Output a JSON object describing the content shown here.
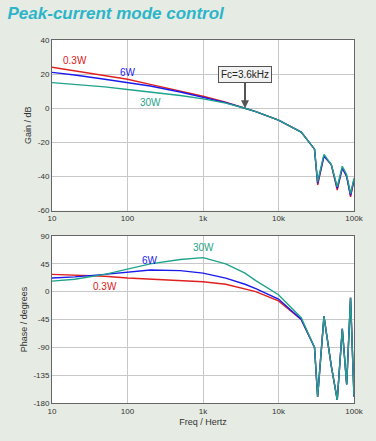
{
  "header": {
    "title": "Peak-current mode control"
  },
  "chart_data": [
    {
      "type": "line",
      "ylabel": "Gain / dB",
      "log": "x",
      "grid": true,
      "x": [
        10,
        20,
        50,
        100,
        200,
        500,
        1000,
        2000,
        3600,
        5000,
        10000,
        20000,
        30000,
        33000,
        40000,
        50000,
        60000,
        70000,
        80000,
        90000,
        100000
      ],
      "xlim": [
        10,
        100000
      ],
      "xticks": [
        10,
        100,
        {
          "value": 1000,
          "label": "1k"
        },
        {
          "value": 10000,
          "label": "10k"
        },
        {
          "value": 100000,
          "label": "100k"
        }
      ],
      "ylim": [
        -60,
        40
      ],
      "yticks": [
        -60,
        -40,
        -20,
        0,
        20,
        40
      ],
      "annotations": [
        {
          "text": "Fc=3.6kHz",
          "x": 3600,
          "y": 0
        }
      ],
      "series": [
        {
          "name": "0.3W",
          "color": "#e02020",
          "values": [
            24,
            22,
            19,
            17,
            14,
            10,
            7,
            3.5,
            0,
            -2,
            -7,
            -14,
            -24,
            -45,
            -28,
            -33,
            -48,
            -35,
            -40,
            -52,
            -42
          ]
        },
        {
          "name": "6W",
          "color": "#1a1aee",
          "values": [
            21,
            19.5,
            17,
            15,
            13,
            9.5,
            6.5,
            3.3,
            0,
            -2,
            -7,
            -14,
            -24,
            -44,
            -28,
            -33,
            -47,
            -35,
            -40,
            -51,
            -42
          ]
        },
        {
          "name": "30W",
          "color": "#1fa38a",
          "values": [
            15,
            14,
            12.5,
            11,
            9.5,
            7.5,
            5.5,
            3,
            0,
            -2,
            -7,
            -14,
            -24,
            -43,
            -27,
            -33,
            -46,
            -34,
            -39,
            -50,
            -41
          ]
        }
      ]
    },
    {
      "type": "line",
      "ylabel": "Phase / degrees",
      "xlabel": "Freq / Hertz",
      "log": "x",
      "grid": true,
      "x": [
        10,
        20,
        50,
        100,
        200,
        500,
        1000,
        2000,
        3600,
        5000,
        10000,
        20000,
        30000,
        33000,
        40000,
        50000,
        60000,
        70000,
        80000,
        90000,
        100000
      ],
      "xlim": [
        10,
        100000
      ],
      "xticks": [
        10,
        100,
        {
          "value": 1000,
          "label": "1k"
        },
        {
          "value": 10000,
          "label": "10k"
        },
        {
          "value": 100000,
          "label": "100k"
        }
      ],
      "ylim": [
        -180,
        90
      ],
      "yticks": [
        -180,
        -135,
        -90,
        -45,
        0,
        45,
        90
      ],
      "series": [
        {
          "name": "0.3W",
          "color": "#e02020",
          "values": [
            28,
            27,
            25,
            22,
            20,
            18,
            16,
            12,
            5,
            0,
            -15,
            -45,
            -90,
            -170,
            -40,
            -120,
            -175,
            -60,
            -150,
            -10,
            -170
          ]
        },
        {
          "name": "6W",
          "color": "#1a1aee",
          "values": [
            22,
            24,
            28,
            32,
            35,
            34,
            30,
            22,
            12,
            5,
            -12,
            -45,
            -90,
            -170,
            -40,
            -120,
            -175,
            -60,
            -150,
            -10,
            -170
          ]
        },
        {
          "name": "30W",
          "color": "#1fa38a",
          "values": [
            17,
            20,
            28,
            36,
            45,
            52,
            55,
            45,
            30,
            18,
            -5,
            -42,
            -90,
            -170,
            -40,
            -120,
            -175,
            -60,
            -150,
            -10,
            -170
          ]
        }
      ]
    }
  ]
}
